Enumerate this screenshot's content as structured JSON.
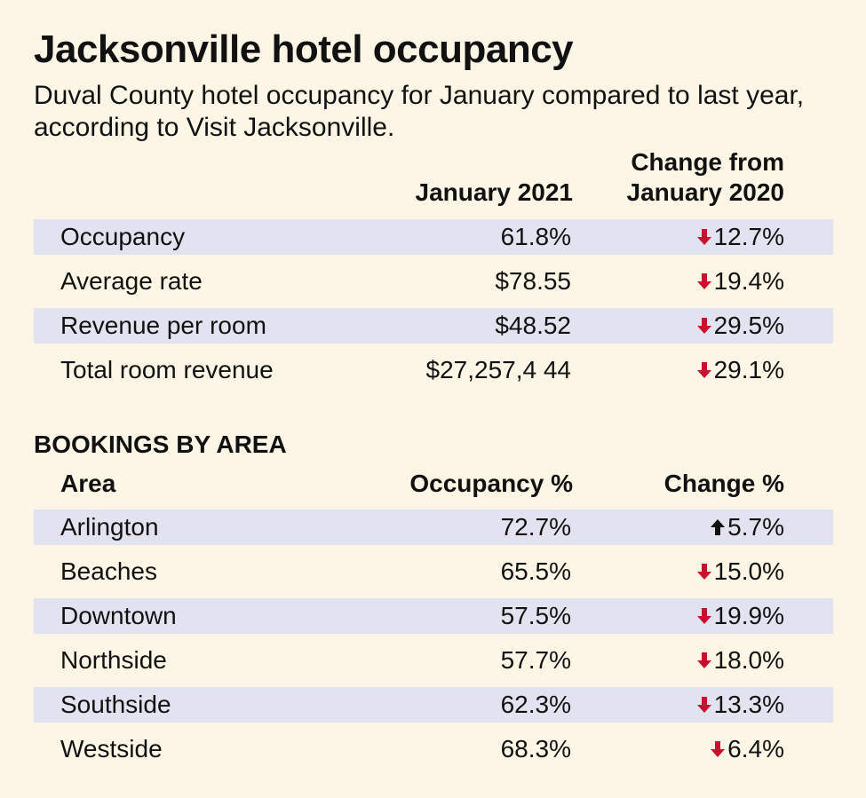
{
  "title": "Jacksonville hotel occupancy",
  "subtitle": "Duval County hotel occupancy for January compared to last year, according to Visit Jacksonville.",
  "colors": {
    "background": "#fdf6e6",
    "shade": "#e2e3f1",
    "down": "#c8102e",
    "up": "#111111"
  },
  "table1": {
    "header_value": "January 2021",
    "header_change_line1": "Change from",
    "header_change_line2": "January 2020"
  },
  "table2": {
    "section_title": "BOOKINGS BY AREA",
    "header_area": "Area",
    "header_value": "Occupancy %",
    "header_change": "Change %"
  },
  "chart_data": [
    {
      "type": "table",
      "columns": [
        "",
        "January 2021",
        "Change from January 2020"
      ],
      "rows": [
        {
          "label": "Occupancy",
          "value": "61.8%",
          "change": "12.7%",
          "direction": "down"
        },
        {
          "label": "Average rate",
          "value": "$78.55",
          "change": "19.4%",
          "direction": "down"
        },
        {
          "label": "Revenue per room",
          "value": "$48.52",
          "change": "29.5%",
          "direction": "down"
        },
        {
          "label": "Total room revenue",
          "value": "$27,257,4 44",
          "change": "29.1%",
          "direction": "down"
        }
      ]
    },
    {
      "type": "table",
      "title": "BOOKINGS BY AREA",
      "columns": [
        "Area",
        "Occupancy %",
        "Change %"
      ],
      "rows": [
        {
          "label": "Arlington",
          "value": "72.7%",
          "change": "5.7%",
          "direction": "up"
        },
        {
          "label": "Beaches",
          "value": "65.5%",
          "change": "15.0%",
          "direction": "down"
        },
        {
          "label": "Downtown",
          "value": "57.5%",
          "change": "19.9%",
          "direction": "down"
        },
        {
          "label": "Northside",
          "value": "57.7%",
          "change": "18.0%",
          "direction": "down"
        },
        {
          "label": "Southside",
          "value": "62.3%",
          "change": "13.3%",
          "direction": "down"
        },
        {
          "label": "Westside",
          "value": "68.3%",
          "change": "6.4%",
          "direction": "down"
        }
      ]
    }
  ]
}
